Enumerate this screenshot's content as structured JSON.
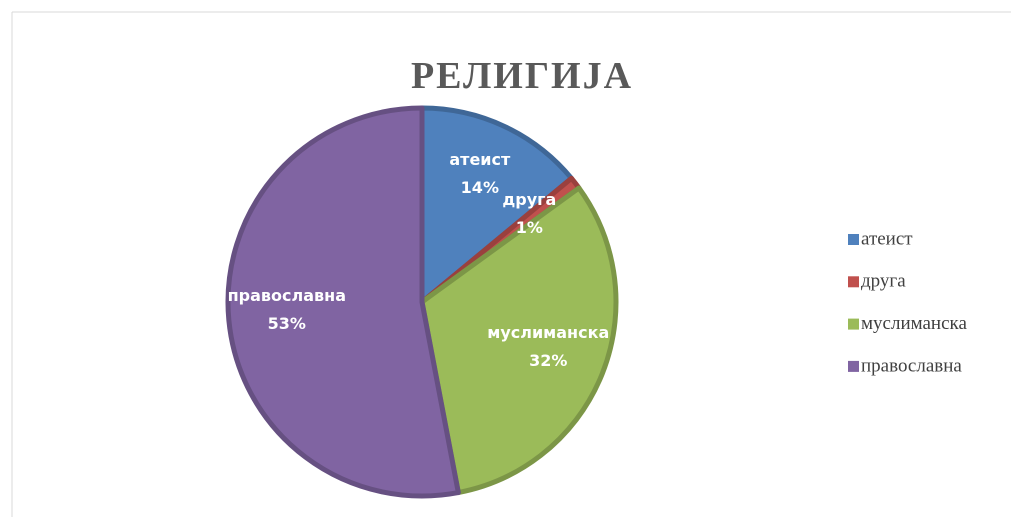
{
  "chart_data": {
    "type": "pie",
    "title": "РЕЛИГИЈА",
    "categories": [
      "атеист",
      "друга",
      "муслиманска",
      "православна"
    ],
    "values": [
      14,
      1,
      32,
      53
    ],
    "value_labels": [
      "14%",
      "1%",
      "32%",
      "53%"
    ],
    "colors": [
      "#4f81bd",
      "#c0504d",
      "#9bbb59",
      "#8064a2"
    ],
    "legend": "right"
  }
}
